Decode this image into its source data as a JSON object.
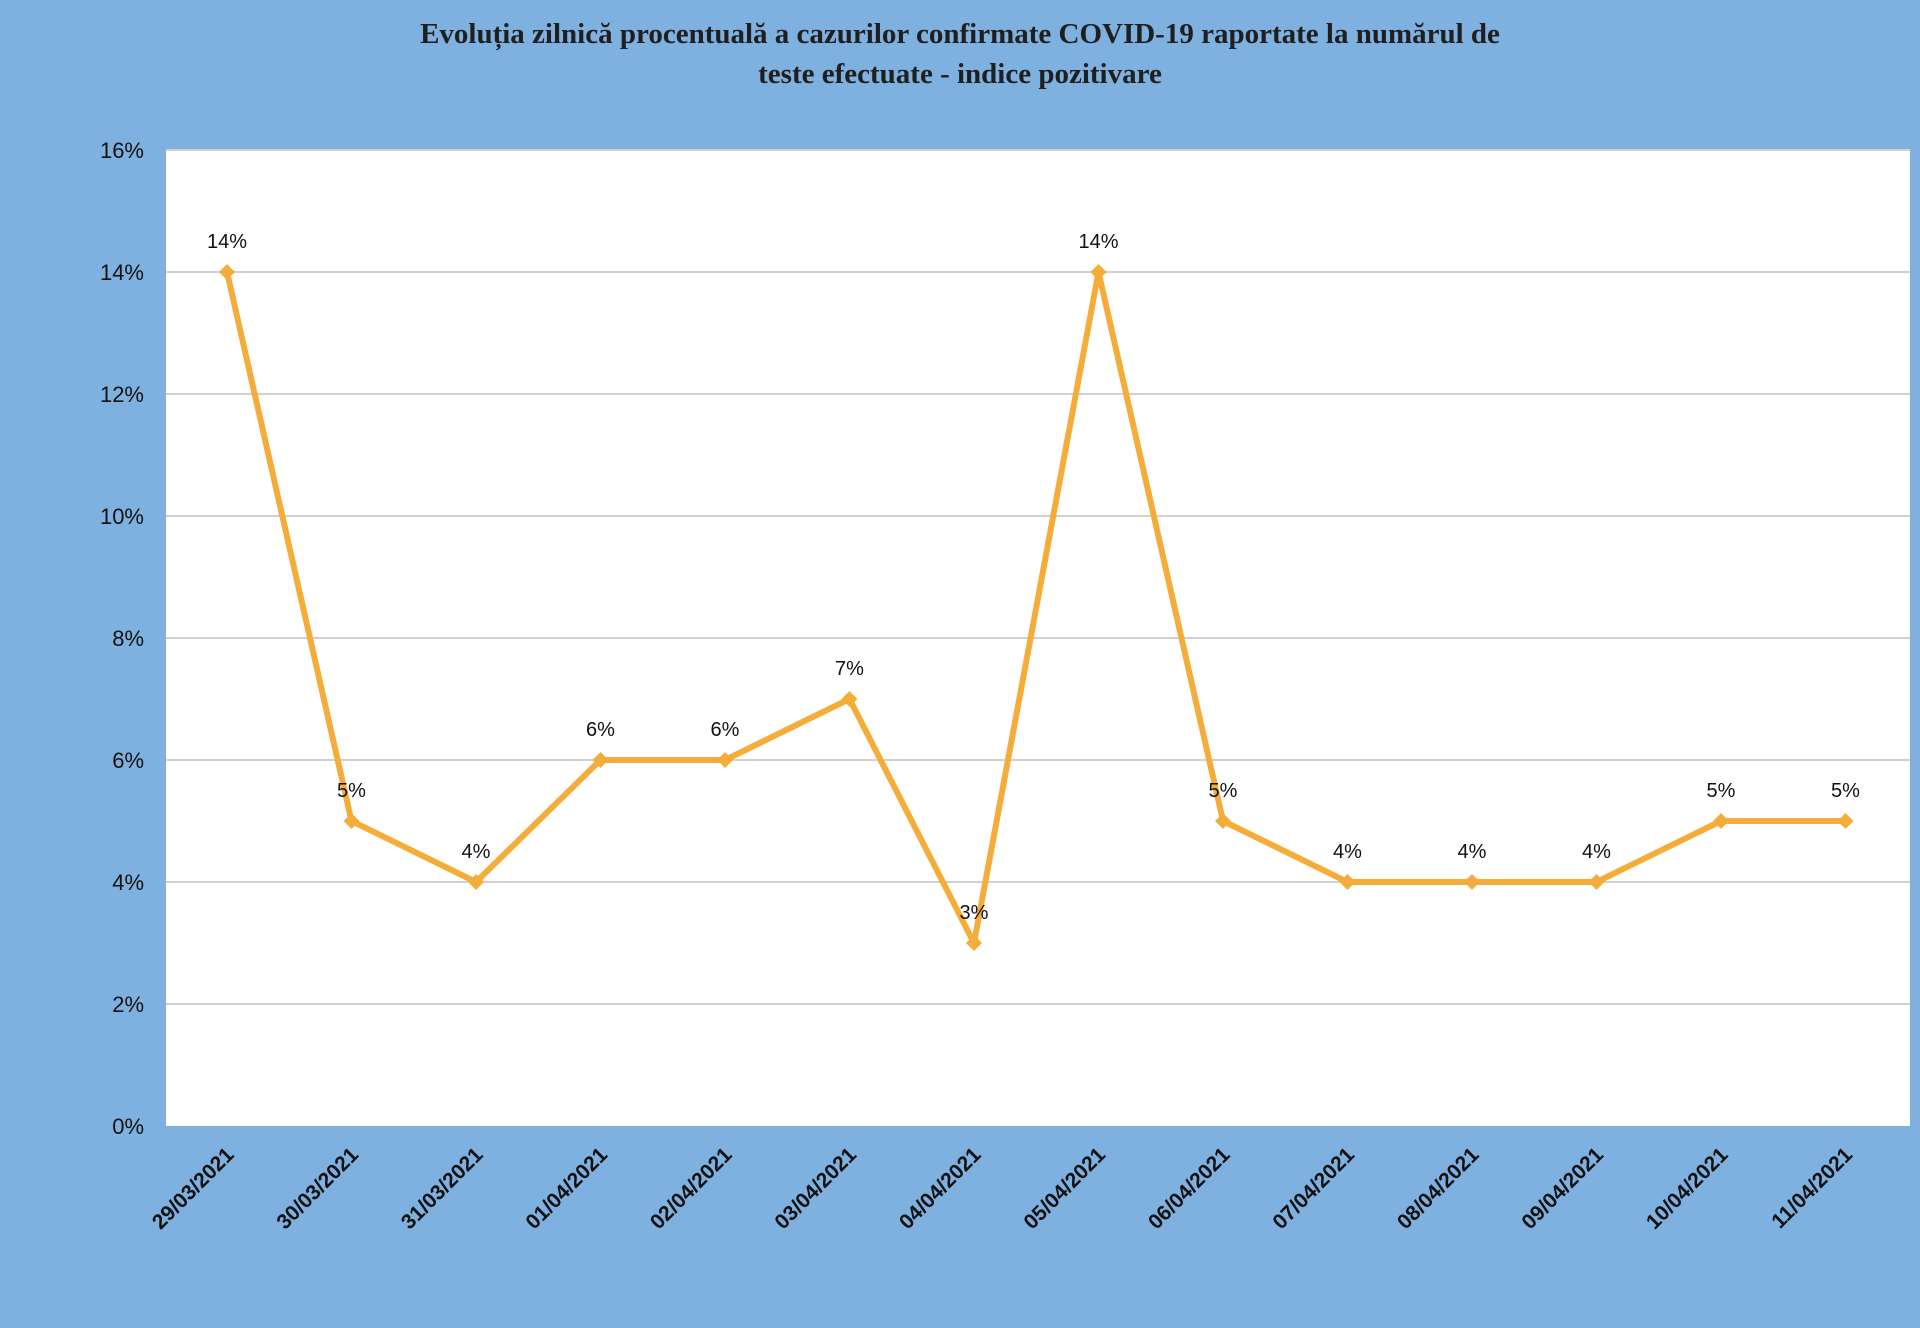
{
  "chart_data": {
    "type": "line",
    "title_lines": [
      "Evoluția zilnică procentuală a cazurilor confirmate COVID-19 raportate la numărul de",
      "teste efectuate - indice pozitivare"
    ],
    "xlabel": "",
    "ylabel": "",
    "categories": [
      "29/03/2021",
      "30/03/2021",
      "31/03/2021",
      "01/04/2021",
      "02/04/2021",
      "03/04/2021",
      "04/04/2021",
      "05/04/2021",
      "06/04/2021",
      "07/04/2021",
      "08/04/2021",
      "09/04/2021",
      "10/04/2021",
      "11/04/2021"
    ],
    "values": [
      14,
      5,
      4,
      6,
      6,
      7,
      3,
      14,
      5,
      4,
      4,
      4,
      5,
      5
    ],
    "data_labels": [
      "14%",
      "5%",
      "4%",
      "6%",
      "6%",
      "7%",
      "3%",
      "14%",
      "5%",
      "4%",
      "4%",
      "4%",
      "5%",
      "5%"
    ],
    "ylim": [
      0,
      16
    ],
    "yticks": [
      0,
      2,
      4,
      6,
      8,
      10,
      12,
      14,
      16
    ],
    "ytick_labels": [
      "0%",
      "2%",
      "4%",
      "6%",
      "8%",
      "10%",
      "12%",
      "14%",
      "16%"
    ],
    "grid": true,
    "legend": "none",
    "colors": {
      "background": "#7eb0e0",
      "plot_area": "#ffffff",
      "gridline": "#d0d0d0",
      "line": "#f5ad3a",
      "marker": "#f5ad3a",
      "text": "#111111"
    }
  }
}
